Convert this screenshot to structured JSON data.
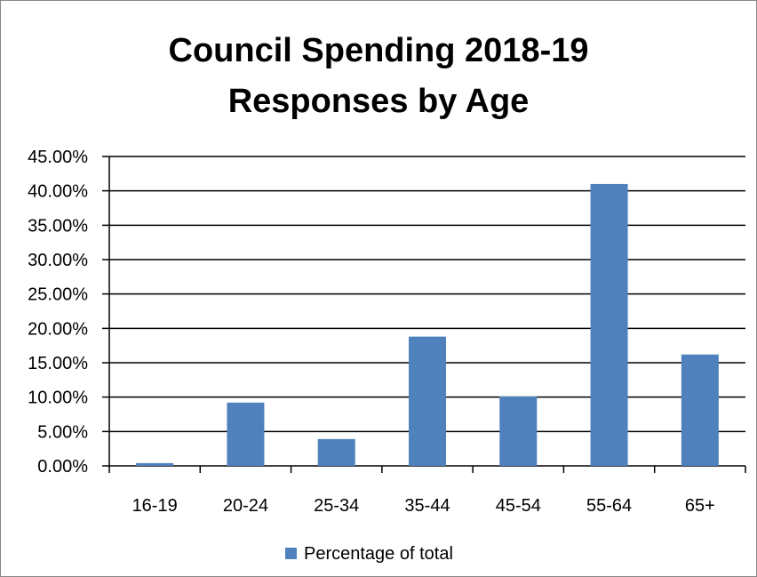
{
  "chart_data": {
    "type": "bar",
    "title": [
      "Council Spending 2018-19",
      "Responses by Age"
    ],
    "categories": [
      "16-19",
      "20-24",
      "25-34",
      "35-44",
      "45-54",
      "55-64",
      "65+"
    ],
    "series": [
      {
        "name": "Percentage of total",
        "color": "#4f81bd",
        "values": [
          0.4,
          9.2,
          3.9,
          18.8,
          10.1,
          41.0,
          16.2
        ]
      }
    ],
    "ylim": [
      0,
      45
    ],
    "yticks": [
      "0.00%",
      "5.00%",
      "10.00%",
      "15.00%",
      "20.00%",
      "25.00%",
      "30.00%",
      "35.00%",
      "40.00%",
      "45.00%"
    ],
    "grid": true,
    "legend": "bottom"
  }
}
